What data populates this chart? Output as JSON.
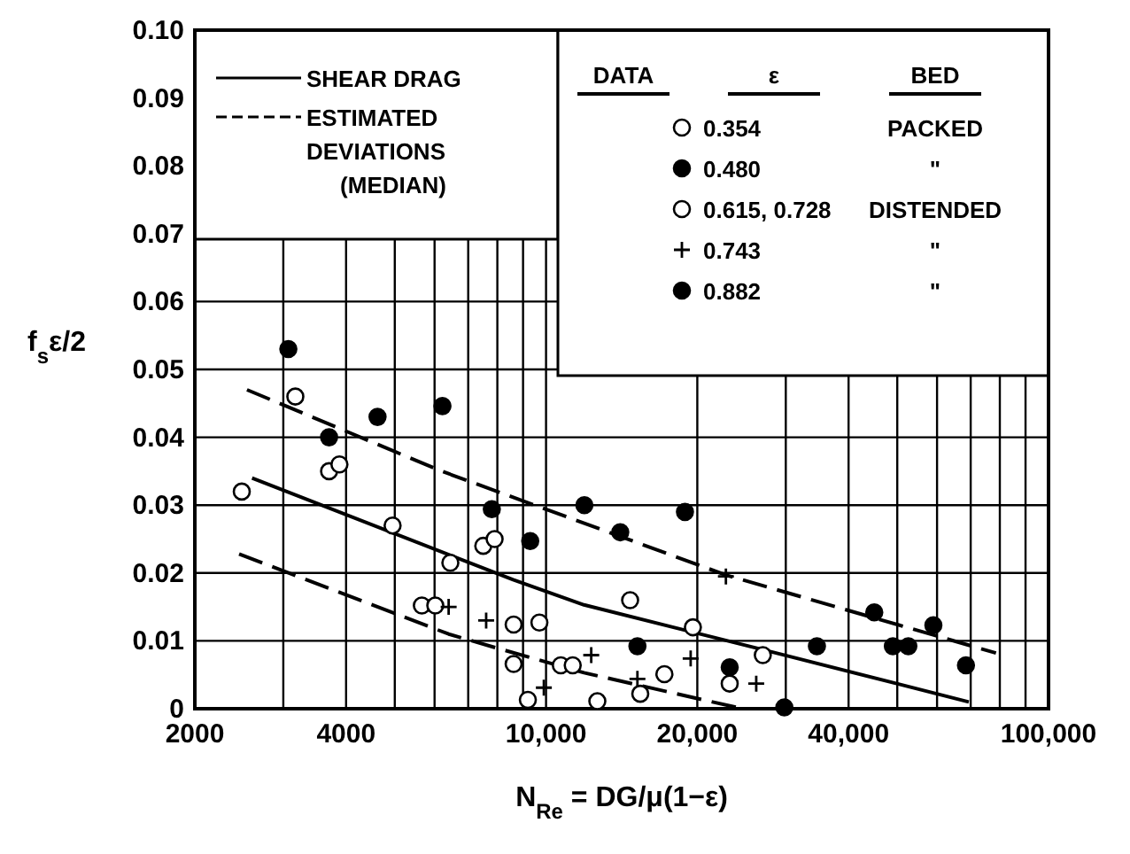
{
  "chart_data": {
    "type": "scatter",
    "xlabel": "N$_{Re}$ = DG/μ(1−ε)",
    "ylabel": "f$_{s}$ε/2",
    "log": "x",
    "grid": true,
    "legend": "top",
    "xlim": [
      2000,
      100000
    ],
    "ylim": [
      0,
      0.1
    ],
    "xticks": [
      {
        "value": 2000,
        "label": "2000"
      },
      {
        "value": 3000,
        "label": null
      },
      {
        "value": 4000,
        "label": "4000"
      },
      {
        "value": 5000,
        "label": null
      },
      {
        "value": 6000,
        "label": null
      },
      {
        "value": 7000,
        "label": null
      },
      {
        "value": 8000,
        "label": null
      },
      {
        "value": 9000,
        "label": null
      },
      {
        "value": 10000,
        "label": "10,000"
      },
      {
        "value": 20000,
        "label": "20,000"
      },
      {
        "value": 30000,
        "label": null
      },
      {
        "value": 40000,
        "label": "40,000"
      },
      {
        "value": 50000,
        "label": null
      },
      {
        "value": 60000,
        "label": null
      },
      {
        "value": 70000,
        "label": null
      },
      {
        "value": 80000,
        "label": null
      },
      {
        "value": 90000,
        "label": null
      },
      {
        "value": 100000,
        "label": "100,000"
      }
    ],
    "yticks": [
      0,
      0.01,
      0.02,
      0.03,
      0.04,
      0.05,
      0.06,
      0.07,
      0.08,
      0.09,
      {
        "value": 0.1,
        "label": "0.10"
      }
    ],
    "annotations": [
      "DATA",
      "ε",
      "BED",
      "PACKED",
      "\"",
      "DISTENDED",
      "\"",
      "\""
    ],
    "series": [
      {
        "type": "line",
        "name": "SHEAR DRAG",
        "color": "#000000",
        "line_style": "solid",
        "x": [
          2600,
          8600,
          11900,
          26700,
          69400
        ],
        "values": [
          0.034,
          0.019,
          0.0153,
          0.0088,
          0.001
        ]
      },
      {
        "type": "line",
        "name": "ESTIMATED DEVIATIONS (MEDIAN)",
        "color": "#000000",
        "line_style": "dashed",
        "x": [
          2540,
          6200,
          22800,
          78600
        ],
        "values": [
          0.047,
          0.035,
          0.0197,
          0.0082
        ]
      },
      {
        "type": "line",
        "color": "#000000",
        "line_style": "dashed",
        "x": [
          2450,
          6400,
          8100,
          11900,
          24600
        ],
        "values": [
          0.0228,
          0.011,
          0.0088,
          0.0053,
          0
        ]
      },
      {
        "name": "0.354",
        "color": "#ffffff",
        "marker": "circle",
        "x": [
          2480,
          3170,
          3700,
          3880,
          4950,
          6450,
          7500,
          7900,
          8620,
          9200
        ],
        "values": [
          0.032,
          0.046,
          0.035,
          0.036,
          0.027,
          0.0215,
          0.024,
          0.025,
          0.0124,
          0.0013
        ]
      },
      {
        "name": "0.480",
        "color": "#000000",
        "marker": "circle",
        "x": [
          3070,
          3700,
          4620,
          6220,
          7800,
          9300,
          14050
        ],
        "values": [
          0.053,
          0.04,
          0.043,
          0.0446,
          0.0294,
          0.0247,
          0.026
        ]
      },
      {
        "name": "0.615, 0.728",
        "color": "#ffffff",
        "marker": "circle",
        "x": [
          5660,
          6020,
          8620,
          9700,
          10700,
          11300,
          12650,
          14700,
          15400,
          17200,
          19600,
          23200,
          27000
        ],
        "values": [
          0.0152,
          0.0152,
          0.0066,
          0.0127,
          0.0064,
          0.0064,
          0.0011,
          0.016,
          0.0022,
          0.0051,
          0.012,
          0.0037,
          0.0079
        ]
      },
      {
        "name": "0.743",
        "color": "#000000",
        "marker": "cross",
        "x": [
          6400,
          7600,
          9900,
          12300,
          15200,
          19400,
          22800,
          26200
        ],
        "values": [
          0.015,
          0.013,
          0.0031,
          0.0079,
          0.0044,
          0.0074,
          0.0195,
          0.0037
        ]
      },
      {
        "name": "0.882",
        "color": "#000000",
        "marker": "circle",
        "x": [
          11920,
          15200,
          18900,
          23200,
          29800,
          34600,
          45000,
          49000,
          52600,
          59000,
          68500
        ],
        "values": [
          0.03,
          0.0092,
          0.029,
          0.0061,
          0.0002,
          0.0092,
          0.0142,
          0.0092,
          0.0092,
          0.0123,
          0.0064
        ]
      }
    ]
  }
}
